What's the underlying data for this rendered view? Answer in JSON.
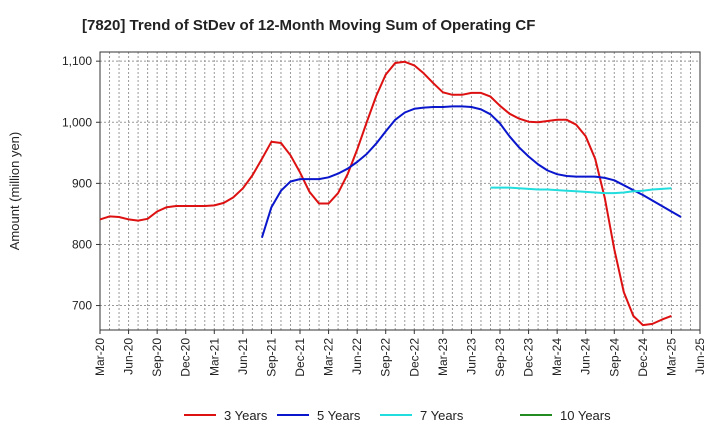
{
  "chart_data": {
    "type": "line",
    "title": "[7820]  Trend of StDev of 12-Month Moving Sum of Operating CF",
    "xlabel": "",
    "ylabel": "Amount (million yen)",
    "ylim": [
      660,
      1115
    ],
    "yticks": [
      700,
      800,
      900,
      1000,
      1100
    ],
    "ytick_labels": [
      "700",
      "800",
      "900",
      "1,000",
      "1,100"
    ],
    "x_start": "2020-03",
    "x_end": "2025-06",
    "xticks": [
      "Mar-20",
      "Jun-20",
      "Sep-20",
      "Dec-20",
      "Mar-21",
      "Jun-21",
      "Sep-21",
      "Dec-21",
      "Mar-22",
      "Jun-22",
      "Sep-22",
      "Dec-22",
      "Mar-23",
      "Jun-23",
      "Sep-23",
      "Dec-23",
      "Mar-24",
      "Jun-24",
      "Sep-24",
      "Dec-24",
      "Mar-25",
      "Jun-25"
    ],
    "grid": true,
    "legend_position": "bottom",
    "series": [
      {
        "name": "3 Years",
        "color": "#dd1111",
        "start": "2020-03",
        "values": [
          841,
          846,
          845,
          841,
          839,
          842,
          854,
          861,
          863,
          863,
          863,
          863,
          864,
          868,
          877,
          892,
          913,
          940,
          968,
          966,
          946,
          918,
          886,
          867,
          867,
          884,
          915,
          955,
          1000,
          1043,
          1078,
          1097,
          1099,
          1093,
          1080,
          1064,
          1049,
          1045,
          1045,
          1048,
          1048,
          1042,
          1027,
          1014,
          1006,
          1001,
          1000,
          1002,
          1004,
          1004,
          996,
          977,
          940,
          876,
          792,
          722,
          683,
          668,
          670,
          677,
          683
        ]
      },
      {
        "name": "5 Years",
        "color": "#0a16cc",
        "start": "2021-08",
        "values": [
          811,
          861,
          888,
          903,
          907,
          907,
          907,
          910,
          916,
          924,
          935,
          948,
          965,
          985,
          1004,
          1016,
          1022,
          1024,
          1025,
          1025,
          1026,
          1026,
          1025,
          1021,
          1013,
          998,
          977,
          959,
          944,
          931,
          921,
          915,
          912,
          911,
          911,
          911,
          909,
          905,
          897,
          889,
          881,
          872,
          863,
          854,
          845
        ]
      },
      {
        "name": "7 Years",
        "color": "#22dddd",
        "start": "2023-08",
        "values": [
          893,
          893,
          893,
          892,
          891,
          890,
          890,
          889,
          888,
          887,
          886,
          885,
          884,
          884,
          885,
          887,
          888,
          890,
          891,
          892
        ]
      },
      {
        "name": "10 Years",
        "color": "#228b22",
        "start": "2025-03",
        "values": []
      }
    ]
  }
}
